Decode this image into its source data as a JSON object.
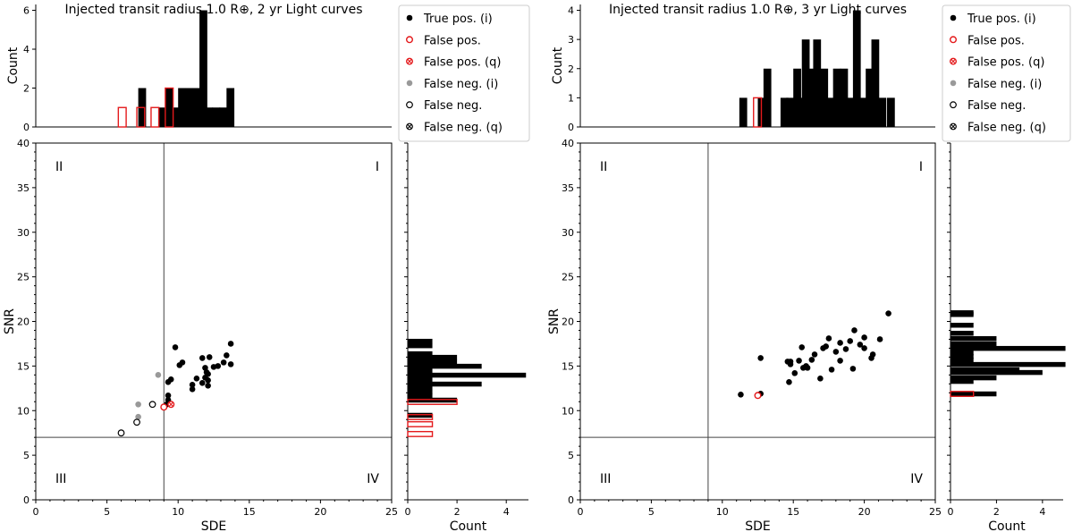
{
  "chart_data": [
    {
      "type": "scatter",
      "title": "Injected transit radius 1.0 R⊕, 2 yr Light curves",
      "xlabel": "SDE",
      "ylabel": "SNR",
      "xlim": [
        0,
        25
      ],
      "ylim": [
        0,
        40
      ],
      "xticks": [
        0,
        5,
        10,
        15,
        20,
        25
      ],
      "yticks": [
        0,
        5,
        10,
        15,
        20,
        25,
        30,
        35,
        40
      ],
      "sde_threshold": 9,
      "snr_threshold": 7,
      "quadrants": [
        "I",
        "II",
        "III",
        "IV"
      ],
      "legend": [
        "True pos. (i)",
        "False pos.",
        "False pos. (q)",
        "False neg. (i)",
        "False neg.",
        "False neg. (q)"
      ],
      "series": [
        {
          "name": "True pos. (i)",
          "points": [
            [
              9.3,
              11.2
            ],
            [
              9.3,
              11.7
            ],
            [
              9.3,
              13.2
            ],
            [
              9.5,
              13.5
            ],
            [
              9.2,
              10.7
            ],
            [
              9.8,
              17.1
            ],
            [
              10.1,
              15.1
            ],
            [
              10.3,
              15.4
            ],
            [
              11.0,
              12.4
            ],
            [
              11.0,
              12.9
            ],
            [
              11.3,
              13.6
            ],
            [
              11.7,
              13.1
            ],
            [
              11.7,
              15.9
            ],
            [
              11.9,
              13.7
            ],
            [
              11.9,
              14.8
            ],
            [
              12.0,
              14.3
            ],
            [
              12.1,
              14.1
            ],
            [
              12.1,
              13.4
            ],
            [
              12.1,
              12.8
            ],
            [
              12.2,
              16.0
            ],
            [
              12.5,
              14.9
            ],
            [
              12.8,
              15.0
            ],
            [
              13.2,
              15.4
            ],
            [
              13.4,
              16.2
            ],
            [
              13.7,
              17.5
            ],
            [
              13.7,
              15.2
            ]
          ]
        },
        {
          "name": "False pos.",
          "points": [
            [
              9.0,
              10.4
            ]
          ]
        },
        {
          "name": "False pos. (q)",
          "points": [
            [
              9.5,
              10.7
            ]
          ]
        },
        {
          "name": "False neg. (i)",
          "points": [
            [
              7.2,
              10.7
            ],
            [
              7.2,
              9.3
            ],
            [
              8.6,
              14.0
            ]
          ]
        },
        {
          "name": "False neg.",
          "points": [
            [
              6.0,
              7.5
            ],
            [
              7.1,
              8.7
            ],
            [
              8.2,
              10.7
            ]
          ]
        },
        {
          "name": "False neg. (q)",
          "points": []
        }
      ],
      "top_histogram": {
        "ylabel": "Count",
        "ylim": [
          0,
          6.3
        ],
        "yticks": [
          0,
          2,
          4,
          6
        ],
        "bin_width": 0.55,
        "positives": [
          [
            7.2,
            2
          ],
          [
            8.6,
            1
          ],
          [
            9.1,
            2
          ],
          [
            9.6,
            1
          ],
          [
            10.0,
            2
          ],
          [
            10.5,
            2
          ],
          [
            11.0,
            2
          ],
          [
            11.5,
            6
          ],
          [
            11.9,
            1
          ],
          [
            12.4,
            1
          ],
          [
            12.9,
            1
          ],
          [
            13.4,
            2
          ]
        ],
        "false_pos": [
          [
            5.8,
            1
          ],
          [
            7.1,
            1
          ],
          [
            8.1,
            1
          ],
          [
            9.1,
            2
          ]
        ]
      },
      "side_histogram": {
        "xlabel": "Count",
        "xlim": [
          0,
          4.9
        ],
        "xticks": [
          0,
          2,
          4
        ],
        "bin_height": 0.55,
        "positives": [
          [
            9.2,
            1
          ],
          [
            10.9,
            2
          ],
          [
            11.4,
            1
          ],
          [
            11.8,
            1
          ],
          [
            12.3,
            1
          ],
          [
            12.7,
            3
          ],
          [
            13.2,
            1
          ],
          [
            13.7,
            4.8
          ],
          [
            14.2,
            1
          ],
          [
            14.7,
            3
          ],
          [
            15.2,
            2
          ],
          [
            15.7,
            2
          ],
          [
            16.1,
            1
          ],
          [
            17.0,
            1
          ],
          [
            17.5,
            1
          ]
        ],
        "false_pos": [
          [
            7.1,
            1
          ],
          [
            8.2,
            1
          ],
          [
            9.0,
            1
          ],
          [
            10.7,
            2
          ]
        ]
      }
    },
    {
      "type": "scatter",
      "title": "Injected transit radius 1.0 R⊕, 3 yr Light curves",
      "xlabel": "SDE",
      "ylabel": "SNR",
      "xlim": [
        0,
        25
      ],
      "ylim": [
        0,
        40
      ],
      "xticks": [
        0,
        5,
        10,
        15,
        20,
        25
      ],
      "yticks": [
        0,
        5,
        10,
        15,
        20,
        25,
        30,
        35,
        40
      ],
      "sde_threshold": 9,
      "snr_threshold": 7,
      "quadrants": [
        "I",
        "II",
        "III",
        "IV"
      ],
      "legend": [
        "True pos. (i)",
        "False pos.",
        "False pos. (q)",
        "False neg. (i)",
        "False neg.",
        "False neg. (q)"
      ],
      "series": [
        {
          "name": "True pos. (i)",
          "points": [
            [
              11.3,
              11.8
            ],
            [
              12.7,
              11.9
            ],
            [
              12.7,
              15.9
            ],
            [
              14.6,
              15.5
            ],
            [
              14.8,
              15.5
            ],
            [
              14.7,
              13.2
            ],
            [
              14.8,
              15.2
            ],
            [
              15.1,
              14.2
            ],
            [
              15.4,
              15.6
            ],
            [
              15.6,
              17.1
            ],
            [
              15.7,
              14.8
            ],
            [
              15.9,
              15.0
            ],
            [
              16.0,
              14.8
            ],
            [
              16.3,
              15.7
            ],
            [
              16.5,
              16.3
            ],
            [
              16.9,
              13.6
            ],
            [
              17.1,
              17.0
            ],
            [
              17.3,
              17.2
            ],
            [
              17.5,
              18.1
            ],
            [
              17.7,
              14.6
            ],
            [
              18.0,
              16.6
            ],
            [
              18.3,
              15.6
            ],
            [
              18.3,
              17.6
            ],
            [
              18.7,
              16.9
            ],
            [
              19.0,
              17.8
            ],
            [
              19.2,
              14.7
            ],
            [
              19.3,
              19.0
            ],
            [
              19.7,
              17.4
            ],
            [
              20.0,
              18.2
            ],
            [
              20.0,
              17.0
            ],
            [
              20.5,
              15.9
            ],
            [
              20.6,
              16.3
            ],
            [
              21.1,
              18.0
            ],
            [
              21.7,
              20.9
            ]
          ]
        },
        {
          "name": "False pos.",
          "points": [
            [
              12.5,
              11.7
            ]
          ]
        },
        {
          "name": "False pos. (q)",
          "points": []
        },
        {
          "name": "False neg. (i)",
          "points": []
        },
        {
          "name": "False neg.",
          "points": []
        },
        {
          "name": "False neg. (q)",
          "points": []
        }
      ],
      "top_histogram": {
        "ylabel": "Count",
        "ylim": [
          0,
          4.2
        ],
        "yticks": [
          0,
          1,
          2,
          3,
          4
        ],
        "bin_width": 0.55,
        "positives": [
          [
            11.2,
            1
          ],
          [
            12.5,
            1
          ],
          [
            12.9,
            2
          ],
          [
            14.1,
            1
          ],
          [
            14.5,
            1
          ],
          [
            15.0,
            2
          ],
          [
            15.5,
            1
          ],
          [
            15.6,
            3
          ],
          [
            16.0,
            2
          ],
          [
            16.4,
            3
          ],
          [
            16.9,
            2
          ],
          [
            17.4,
            1
          ],
          [
            17.8,
            2
          ],
          [
            18.3,
            2
          ],
          [
            18.8,
            1
          ],
          [
            19.2,
            4
          ],
          [
            19.6,
            1
          ],
          [
            20.1,
            2
          ],
          [
            20.5,
            3
          ],
          [
            21.0,
            1
          ],
          [
            21.6,
            1
          ]
        ],
        "false_pos": [
          [
            12.2,
            1
          ]
        ]
      },
      "side_histogram": {
        "xlabel": "Count",
        "xlim": [
          0,
          4.9
        ],
        "xticks": [
          0,
          2,
          4
        ],
        "bin_height": 0.55,
        "positives": [
          [
            11.6,
            2
          ],
          [
            13.0,
            1
          ],
          [
            13.4,
            2
          ],
          [
            14.0,
            4
          ],
          [
            14.3,
            3
          ],
          [
            14.9,
            5
          ],
          [
            15.4,
            1
          ],
          [
            15.8,
            1
          ],
          [
            16.2,
            1
          ],
          [
            16.7,
            5
          ],
          [
            17.2,
            2
          ],
          [
            17.8,
            2
          ],
          [
            18.4,
            1
          ],
          [
            19.3,
            1
          ],
          [
            20.5,
            1
          ],
          [
            20.7,
            1
          ]
        ],
        "false_pos": [
          [
            11.6,
            1
          ]
        ]
      }
    }
  ]
}
